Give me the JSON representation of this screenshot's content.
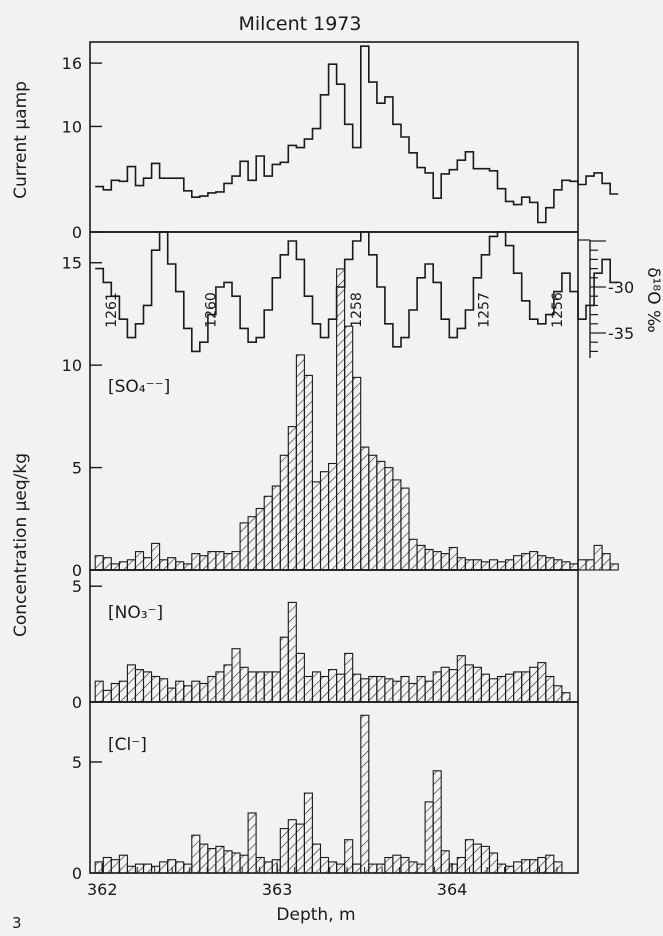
{
  "figure_number": "3",
  "chart_data": {
    "type": "histogram",
    "title": "Milcent 1973",
    "xlabel": "Depth,  m",
    "xlim": [
      361.93,
      364.72
    ],
    "x_ticks": [
      362,
      363,
      364
    ],
    "bin_width": 0.046,
    "shared_ylabel": "Concentration  μeq/kg",
    "panels": [
      {
        "id": "current",
        "ylabel": "Current  μamp",
        "ylim": [
          0,
          18
        ],
        "yticks": [
          0,
          10,
          16
        ],
        "style": "step",
        "values": [
          4.3,
          4.0,
          4.9,
          4.8,
          6.2,
          4.4,
          5.1,
          6.5,
          5.1,
          5.1,
          5.1,
          3.9,
          3.3,
          3.4,
          3.7,
          3.8,
          4.6,
          5.3,
          6.7,
          4.9,
          7.2,
          5.3,
          6.4,
          6.6,
          8.2,
          8.0,
          8.8,
          9.8,
          13.0,
          15.9,
          14.0,
          10.2,
          8.0,
          17.6,
          14.2,
          12.2,
          12.8,
          10.2,
          9.0,
          7.5,
          6.1,
          5.6,
          3.2,
          5.5,
          5.9,
          6.8,
          7.6,
          6.0,
          6.0,
          5.8,
          4.1,
          2.9,
          2.6,
          3.3,
          2.8,
          0.9,
          2.3,
          4.0,
          4.9,
          4.8,
          4.5,
          5.3,
          5.6,
          4.6,
          3.6
        ]
      },
      {
        "id": "d18o",
        "style": "step",
        "right_axis_label": "δ¹⁸O ‰",
        "right_yticks": [
          -30,
          -35
        ],
        "right_ylim": [
          -39.5,
          -22.5
        ],
        "values": [
          -28.0,
          -29.5,
          -31.0,
          -33.5,
          -35.5,
          -34.0,
          -32.0,
          -26.0,
          -24.0,
          -27.5,
          -30.5,
          -34.5,
          -37.0,
          -36.0,
          -33.0,
          -30.0,
          -29.5,
          -31.0,
          -34.5,
          -36.0,
          -35.5,
          -32.5,
          -29.0,
          -26.5,
          -25.0,
          -27.0,
          -31.0,
          -34.0,
          -35.5,
          -33.5,
          -30.0,
          -27.0,
          -25.0,
          -24.0,
          -26.5,
          -30.0,
          -34.0,
          -36.5,
          -35.5,
          -32.5,
          -29.0,
          -27.5,
          -29.5,
          -33.5,
          -35.5,
          -34.5,
          -32.5,
          -29.0,
          -26.5,
          -24.5,
          -24.0,
          -25.5,
          -28.5,
          -31.5,
          -33.5,
          -34.0,
          -33.0,
          -30.5,
          -28.5,
          -30.5,
          -33.5,
          -32.0,
          -28.5,
          -27.0,
          -29.5
        ],
        "annual_layers": [
          {
            "label": "1261",
            "depth": 362.05
          },
          {
            "label": "1260",
            "depth": 362.62
          },
          {
            "label": "1258",
            "depth": 363.45
          },
          {
            "label": "1257",
            "depth": 364.18
          },
          {
            "label": "1256",
            "depth": 364.6
          }
        ]
      },
      {
        "id": "so4",
        "label": "[SO₄⁻⁻]",
        "ylim": [
          0,
          16.5
        ],
        "yticks": [
          0,
          5,
          10,
          15
        ],
        "style": "hatched",
        "values": [
          0.7,
          0.6,
          0.3,
          0.4,
          0.5,
          0.9,
          0.6,
          1.3,
          0.5,
          0.6,
          0.4,
          0.3,
          0.8,
          0.7,
          0.9,
          0.9,
          0.8,
          0.9,
          2.3,
          2.6,
          3.0,
          3.6,
          4.1,
          5.6,
          7.0,
          10.5,
          9.5,
          4.3,
          4.8,
          5.2,
          14.7,
          11.9,
          9.4,
          6.0,
          5.6,
          5.3,
          5.0,
          4.4,
          4.0,
          1.5,
          1.2,
          1.0,
          0.9,
          0.8,
          1.1,
          0.6,
          0.5,
          0.5,
          0.4,
          0.5,
          0.4,
          0.5,
          0.7,
          0.8,
          0.9,
          0.7,
          0.6,
          0.5,
          0.4,
          0.3,
          0.5,
          0.5,
          1.2,
          0.8,
          0.3
        ]
      },
      {
        "id": "no3",
        "label": "[NO₃⁻]",
        "ylim": [
          0,
          5.7
        ],
        "yticks": [
          0,
          5
        ],
        "style": "hatched",
        "values": [
          0.9,
          0.5,
          0.8,
          0.9,
          1.6,
          1.4,
          1.3,
          1.1,
          1.0,
          0.6,
          0.9,
          0.7,
          0.9,
          0.8,
          1.1,
          1.3,
          1.6,
          2.3,
          1.5,
          1.3,
          1.3,
          1.3,
          1.3,
          2.8,
          4.3,
          2.1,
          1.1,
          1.3,
          1.1,
          1.4,
          1.2,
          2.1,
          1.2,
          1.0,
          1.1,
          1.1,
          1.0,
          0.9,
          1.1,
          0.8,
          1.1,
          0.9,
          1.3,
          1.5,
          1.4,
          2.0,
          1.6,
          1.5,
          1.2,
          1.0,
          1.1,
          1.2,
          1.3,
          1.3,
          1.5,
          1.7,
          1.1,
          0.7,
          0.4
        ]
      },
      {
        "id": "cl",
        "label": "[Cl⁻]",
        "ylim": [
          0,
          7.7
        ],
        "yticks": [
          0,
          5
        ],
        "style": "hatched",
        "values": [
          0.5,
          0.7,
          0.6,
          0.8,
          0.3,
          0.4,
          0.4,
          0.3,
          0.5,
          0.6,
          0.5,
          0.4,
          1.7,
          1.3,
          1.1,
          1.2,
          1.0,
          0.9,
          0.8,
          2.7,
          0.7,
          0.5,
          0.6,
          2.0,
          2.4,
          2.2,
          3.6,
          1.3,
          0.7,
          0.5,
          0.4,
          1.5,
          0.4,
          7.1,
          0.4,
          0.4,
          0.7,
          0.8,
          0.7,
          0.5,
          0.4,
          3.2,
          4.6,
          1.0,
          0.4,
          0.7,
          1.5,
          1.3,
          1.2,
          0.9,
          0.4,
          0.3,
          0.5,
          0.6,
          0.6,
          0.7,
          0.8,
          0.5
        ]
      }
    ]
  }
}
